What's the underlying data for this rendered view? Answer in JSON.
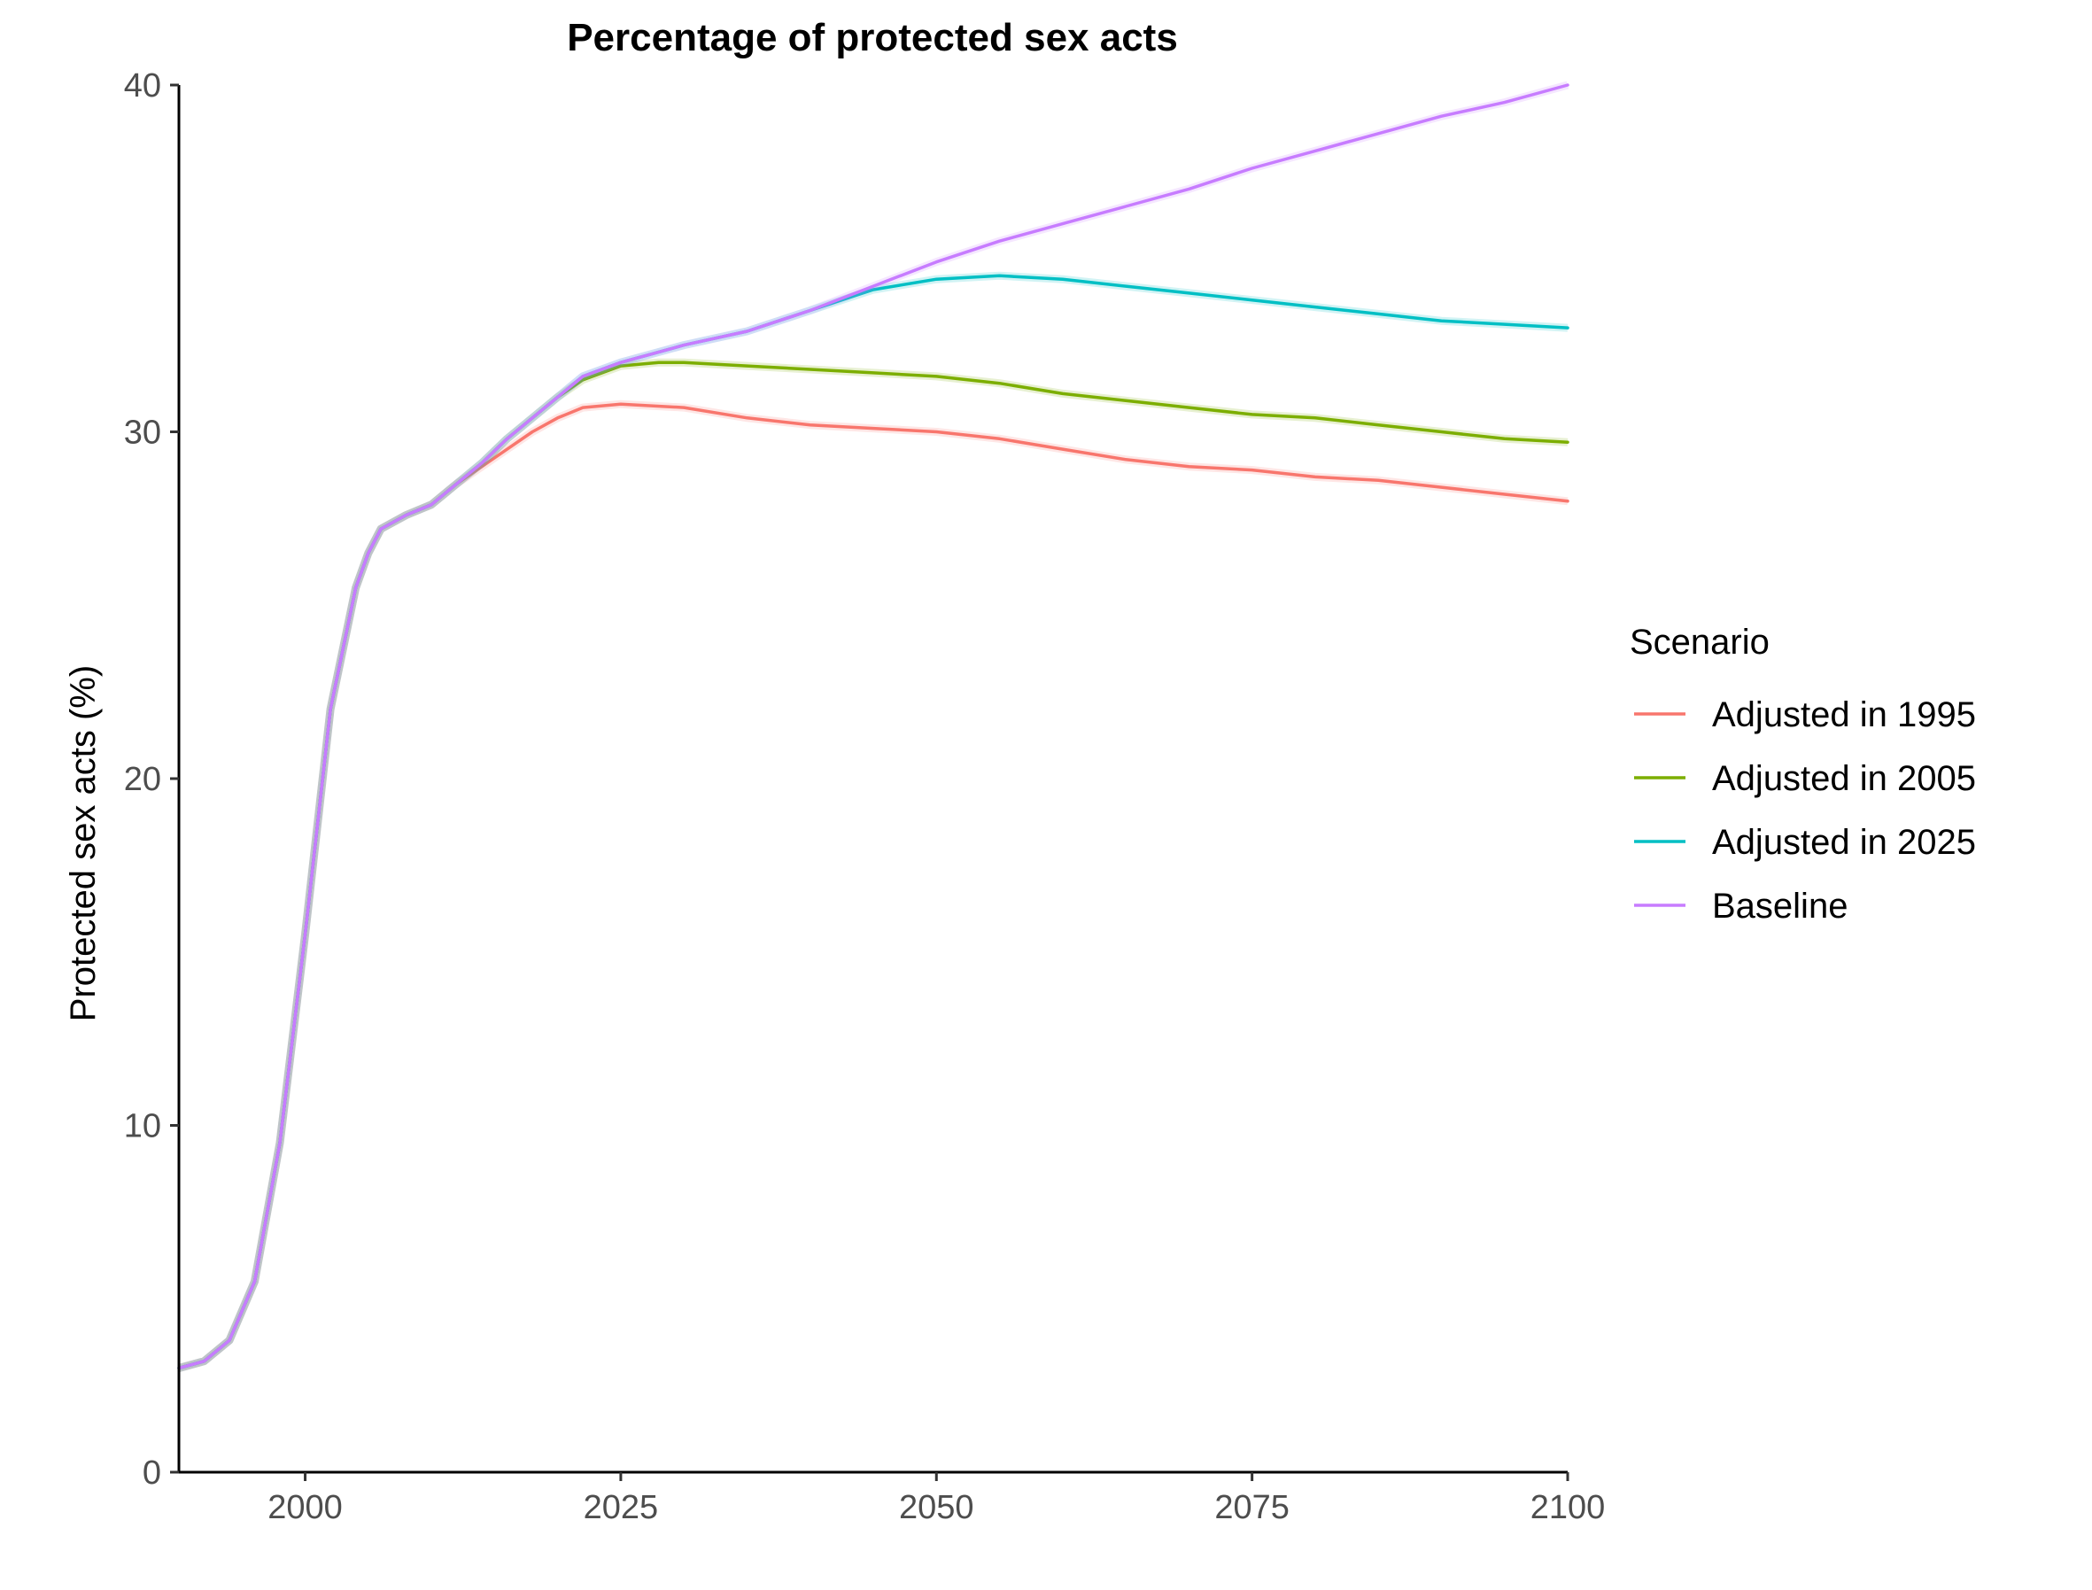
{
  "chart_data": {
    "type": "line",
    "title": "Percentage of protected sex acts",
    "xlabel": "",
    "ylabel": "Protected sex acts (%)",
    "xlim": [
      1990,
      2100
    ],
    "ylim": [
      0,
      40
    ],
    "x_ticks": [
      2000,
      2025,
      2050,
      2075,
      2100
    ],
    "y_ticks": [
      0,
      10,
      20,
      30,
      40
    ],
    "grid": false,
    "legend": {
      "title": "Scenario",
      "position": "right"
    },
    "series": [
      {
        "name": "Adjusted in 1995",
        "color": "#F8766D",
        "points": [
          [
            1990,
            3.0
          ],
          [
            1992,
            3.2
          ],
          [
            1994,
            3.8
          ],
          [
            1996,
            5.5
          ],
          [
            1998,
            9.5
          ],
          [
            2000,
            15.5
          ],
          [
            2002,
            22.0
          ],
          [
            2004,
            25.5
          ],
          [
            2005,
            26.5
          ],
          [
            2006,
            27.2
          ],
          [
            2008,
            27.6
          ],
          [
            2010,
            27.9
          ],
          [
            2012,
            28.5
          ],
          [
            2014,
            29.0
          ],
          [
            2016,
            29.5
          ],
          [
            2018,
            30.0
          ],
          [
            2020,
            30.4
          ],
          [
            2022,
            30.7
          ],
          [
            2025,
            30.8
          ],
          [
            2030,
            30.7
          ],
          [
            2035,
            30.4
          ],
          [
            2040,
            30.2
          ],
          [
            2045,
            30.1
          ],
          [
            2050,
            30.0
          ],
          [
            2055,
            29.8
          ],
          [
            2060,
            29.5
          ],
          [
            2065,
            29.2
          ],
          [
            2070,
            29.0
          ],
          [
            2075,
            28.9
          ],
          [
            2080,
            28.7
          ],
          [
            2085,
            28.6
          ],
          [
            2090,
            28.4
          ],
          [
            2095,
            28.2
          ],
          [
            2100,
            28.0
          ]
        ]
      },
      {
        "name": "Adjusted in 2005",
        "color": "#7CAE00",
        "points": [
          [
            1990,
            3.0
          ],
          [
            1992,
            3.2
          ],
          [
            1994,
            3.8
          ],
          [
            1996,
            5.5
          ],
          [
            1998,
            9.5
          ],
          [
            2000,
            15.5
          ],
          [
            2002,
            22.0
          ],
          [
            2004,
            25.5
          ],
          [
            2005,
            26.5
          ],
          [
            2006,
            27.2
          ],
          [
            2008,
            27.6
          ],
          [
            2010,
            27.9
          ],
          [
            2012,
            28.5
          ],
          [
            2014,
            29.1
          ],
          [
            2016,
            29.8
          ],
          [
            2018,
            30.4
          ],
          [
            2020,
            31.0
          ],
          [
            2022,
            31.5
          ],
          [
            2025,
            31.9
          ],
          [
            2028,
            32.0
          ],
          [
            2030,
            32.0
          ],
          [
            2035,
            31.9
          ],
          [
            2040,
            31.8
          ],
          [
            2045,
            31.7
          ],
          [
            2050,
            31.6
          ],
          [
            2055,
            31.4
          ],
          [
            2060,
            31.1
          ],
          [
            2065,
            30.9
          ],
          [
            2070,
            30.7
          ],
          [
            2075,
            30.5
          ],
          [
            2080,
            30.4
          ],
          [
            2085,
            30.2
          ],
          [
            2090,
            30.0
          ],
          [
            2095,
            29.8
          ],
          [
            2100,
            29.7
          ]
        ]
      },
      {
        "name": "Adjusted in 2025",
        "color": "#00BFC4",
        "points": [
          [
            1990,
            3.0
          ],
          [
            1992,
            3.2
          ],
          [
            1994,
            3.8
          ],
          [
            1996,
            5.5
          ],
          [
            1998,
            9.5
          ],
          [
            2000,
            15.5
          ],
          [
            2002,
            22.0
          ],
          [
            2004,
            25.5
          ],
          [
            2005,
            26.5
          ],
          [
            2006,
            27.2
          ],
          [
            2008,
            27.6
          ],
          [
            2010,
            27.9
          ],
          [
            2012,
            28.5
          ],
          [
            2014,
            29.1
          ],
          [
            2016,
            29.8
          ],
          [
            2018,
            30.4
          ],
          [
            2020,
            31.0
          ],
          [
            2022,
            31.6
          ],
          [
            2025,
            32.0
          ],
          [
            2030,
            32.5
          ],
          [
            2035,
            32.9
          ],
          [
            2040,
            33.5
          ],
          [
            2045,
            34.1
          ],
          [
            2050,
            34.4
          ],
          [
            2055,
            34.5
          ],
          [
            2060,
            34.4
          ],
          [
            2065,
            34.2
          ],
          [
            2070,
            34.0
          ],
          [
            2075,
            33.8
          ],
          [
            2080,
            33.6
          ],
          [
            2085,
            33.4
          ],
          [
            2090,
            33.2
          ],
          [
            2095,
            33.1
          ],
          [
            2100,
            33.0
          ]
        ]
      },
      {
        "name": "Baseline",
        "color": "#C77CFF",
        "points": [
          [
            1990,
            3.0
          ],
          [
            1992,
            3.2
          ],
          [
            1994,
            3.8
          ],
          [
            1996,
            5.5
          ],
          [
            1998,
            9.5
          ],
          [
            2000,
            15.5
          ],
          [
            2002,
            22.0
          ],
          [
            2004,
            25.5
          ],
          [
            2005,
            26.5
          ],
          [
            2006,
            27.2
          ],
          [
            2008,
            27.6
          ],
          [
            2010,
            27.9
          ],
          [
            2012,
            28.5
          ],
          [
            2014,
            29.1
          ],
          [
            2016,
            29.8
          ],
          [
            2018,
            30.4
          ],
          [
            2020,
            31.0
          ],
          [
            2022,
            31.6
          ],
          [
            2025,
            32.0
          ],
          [
            2030,
            32.5
          ],
          [
            2035,
            32.9
          ],
          [
            2040,
            33.5
          ],
          [
            2045,
            34.2
          ],
          [
            2050,
            34.9
          ],
          [
            2055,
            35.5
          ],
          [
            2060,
            36.0
          ],
          [
            2065,
            36.5
          ],
          [
            2070,
            37.0
          ],
          [
            2075,
            37.6
          ],
          [
            2080,
            38.1
          ],
          [
            2085,
            38.6
          ],
          [
            2090,
            39.1
          ],
          [
            2095,
            39.5
          ],
          [
            2100,
            40.0
          ]
        ]
      }
    ]
  }
}
